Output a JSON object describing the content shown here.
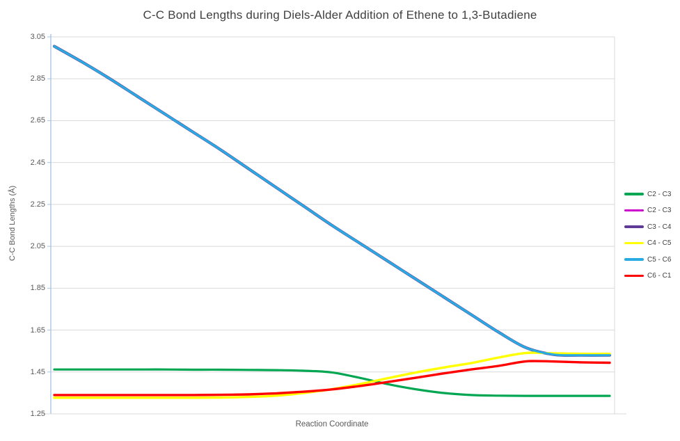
{
  "title": "C-C Bond Lengths during Diels-Alder Addition of Ethene to 1,3-Butadiene",
  "colors": {
    "axis_line": "#A9C5E4",
    "gridline": "#D9D9D9",
    "title_text": "#404040",
    "tick_text": "#595959",
    "background": "#FFFFFF"
  },
  "chart_data": {
    "type": "line",
    "title": "C-C Bond Lengths during Diels-Alder Addition of Ethene to 1,3-Butadiene",
    "xlabel": "Reaction Coordinate",
    "ylabel": "C-C Bond Lengths (Å)",
    "ylim": [
      1.25,
      3.05
    ],
    "yticks": [
      3.05,
      2.85,
      2.65,
      2.45,
      2.25,
      2.05,
      1.85,
      1.65,
      1.45,
      1.25
    ],
    "grid": "horizontal-only",
    "legend_position": "right",
    "x_is_unlabeled_reaction_coordinate": true,
    "x": [
      0,
      0.05,
      0.1,
      0.15,
      0.2,
      0.25,
      0.3,
      0.35,
      0.4,
      0.45,
      0.5,
      0.55,
      0.6,
      0.65,
      0.7,
      0.75,
      0.8,
      0.85,
      0.9,
      0.95,
      1.0
    ],
    "series": [
      {
        "name": "C2 - C3",
        "color": "#00A651",
        "width": 3.2,
        "values": [
          1.462,
          1.462,
          1.462,
          1.462,
          1.462,
          1.461,
          1.461,
          1.46,
          1.459,
          1.456,
          1.448,
          1.422,
          1.392,
          1.368,
          1.35,
          1.34,
          1.337,
          1.336,
          1.336,
          1.336,
          1.336
        ]
      },
      {
        "name": "C2 - C3",
        "color": "#CC00CC",
        "width": 3.6,
        "values": [
          3.005,
          2.93,
          2.85,
          2.765,
          2.68,
          2.595,
          2.51,
          2.42,
          2.33,
          2.24,
          2.15,
          2.065,
          1.98,
          1.895,
          1.81,
          1.725,
          1.64,
          1.565,
          1.533,
          1.53,
          1.53
        ]
      },
      {
        "name": "C3 - C4",
        "color": "#5F3A97",
        "width": 4.2,
        "values": [
          3.005,
          2.93,
          2.85,
          2.765,
          2.68,
          2.595,
          2.51,
          2.42,
          2.33,
          2.24,
          2.15,
          2.065,
          1.98,
          1.895,
          1.81,
          1.725,
          1.64,
          1.565,
          1.533,
          1.53,
          1.53
        ]
      },
      {
        "name": "C4 - C5",
        "color": "#FFFF00",
        "width": 3.4,
        "values": [
          1.327,
          1.327,
          1.327,
          1.327,
          1.327,
          1.327,
          1.328,
          1.331,
          1.337,
          1.35,
          1.368,
          1.392,
          1.42,
          1.447,
          1.471,
          1.492,
          1.519,
          1.541,
          1.539,
          1.537,
          1.537
        ]
      },
      {
        "name": "C5 - C6",
        "color": "#29ABE2",
        "width": 3.2,
        "values": [
          3.005,
          2.93,
          2.85,
          2.765,
          2.68,
          2.595,
          2.51,
          2.42,
          2.33,
          2.24,
          2.15,
          2.065,
          1.98,
          1.895,
          1.81,
          1.725,
          1.64,
          1.565,
          1.533,
          1.53,
          1.53
        ]
      },
      {
        "name": "C6 - C1",
        "color": "#FF0000",
        "width": 3.4,
        "values": [
          1.34,
          1.34,
          1.34,
          1.34,
          1.34,
          1.34,
          1.341,
          1.343,
          1.348,
          1.356,
          1.367,
          1.383,
          1.402,
          1.422,
          1.443,
          1.462,
          1.479,
          1.501,
          1.5,
          1.496,
          1.494
        ]
      }
    ]
  }
}
